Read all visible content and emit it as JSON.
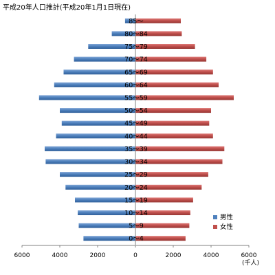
{
  "chart_data": {
    "type": "bar",
    "orientation": "horizontal",
    "title": "平成20年人口推計(平成20年1月1日現在)",
    "unit_label": "(千人)",
    "categories": [
      "0～4",
      "5～9",
      "10～14",
      "15～19",
      "20～24",
      "25～29",
      "30～34",
      "35～39",
      "40～44",
      "45～49",
      "50～54",
      "55～59",
      "60～64",
      "65～69",
      "70～74",
      "75～79",
      "80～84",
      "85～"
    ],
    "series": [
      {
        "name": "男性",
        "color": "#4f81bd",
        "side": "left",
        "values": [
          2750,
          3000,
          3050,
          3200,
          3700,
          4000,
          4750,
          4800,
          4200,
          3900,
          4000,
          5100,
          4300,
          3800,
          3250,
          2500,
          1250,
          550
        ]
      },
      {
        "name": "女性",
        "color": "#c0504d",
        "side": "right",
        "values": [
          2650,
          2850,
          2900,
          3050,
          3500,
          3850,
          4600,
          4700,
          4100,
          3900,
          4000,
          5200,
          4400,
          4100,
          3750,
          3150,
          2450,
          2400
        ]
      }
    ],
    "x_ticks": [
      "6000",
      "4000",
      "2000",
      "0",
      "2000",
      "4000",
      "6000"
    ],
    "xlim": [
      -6000,
      6000
    ],
    "grid": false,
    "legend_position": "right"
  }
}
